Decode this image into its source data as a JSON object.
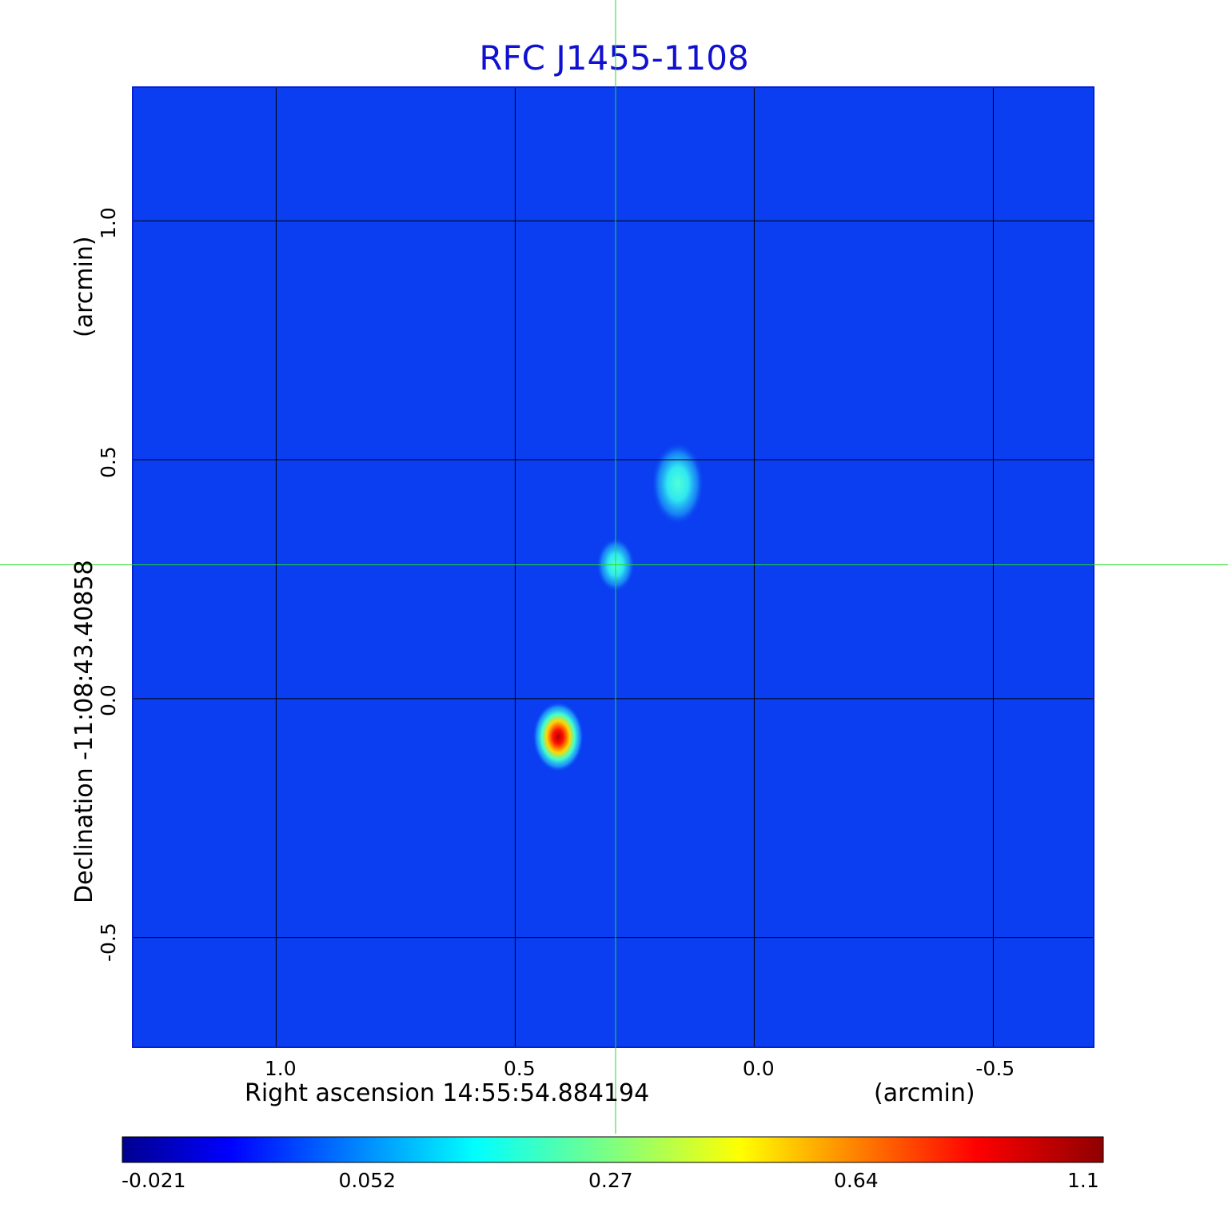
{
  "chart_data": {
    "type": "heatmap",
    "title": "RFC J1455-1108",
    "xlabel": "Right ascension  14:55:54.884194",
    "xunit": "(arcmin)",
    "ylabel": "Declination  -11:08:43.40858",
    "yunit": "(arcmin)",
    "x_ticks": [
      "1.0",
      "0.5",
      "0.0",
      "-0.5"
    ],
    "x_tick_values": [
      1.0,
      0.5,
      0.0,
      -0.5
    ],
    "y_ticks": [
      "1.0",
      "0.5",
      "0.0",
      "-0.5"
    ],
    "y_tick_values": [
      1.0,
      0.5,
      0.0,
      -0.5
    ],
    "xlim": [
      1.3,
      -0.71
    ],
    "ylim": [
      -0.73,
      1.28
    ],
    "x_reversed": true,
    "grid": true,
    "crosshair": {
      "x": 0.29,
      "y": 0.28,
      "color": "#22dd22"
    },
    "background_color": "#0a3ef0",
    "colorbar": {
      "ticks": [
        "-0.021",
        "0.052",
        "0.27",
        "0.64",
        "1.1"
      ],
      "colormap": "jet"
    },
    "sources": [
      {
        "x": 0.41,
        "y": -0.08,
        "peak": 1.1
      },
      {
        "x": 0.16,
        "y": 0.45,
        "peak": 0.2
      },
      {
        "x": 0.29,
        "y": 0.28,
        "peak": 0.17
      }
    ]
  }
}
